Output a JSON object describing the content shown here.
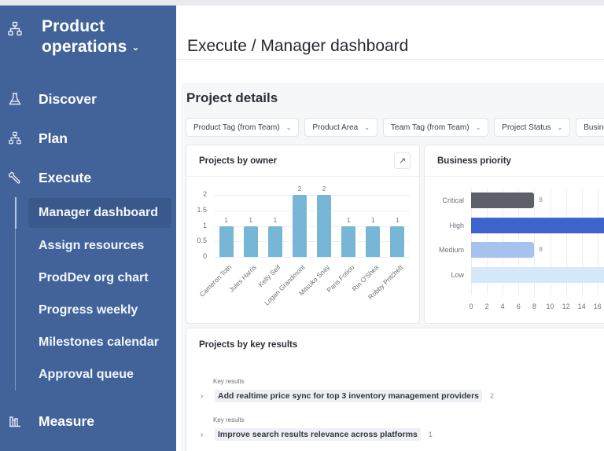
{
  "sidebar": {
    "workspace": {
      "title_line1": "Product",
      "title_line2": "operations",
      "caret": "⌄",
      "icon": "org-chart-icon"
    },
    "sections": [
      {
        "label": "Discover",
        "icon": "flask-icon"
      },
      {
        "label": "Plan",
        "icon": "org-chart-icon"
      },
      {
        "label": "Execute",
        "icon": "wrench-icon"
      },
      {
        "label": "Measure",
        "icon": "bar-chart-icon"
      }
    ],
    "execute_items": [
      {
        "label": "Manager dashboard",
        "active": true
      },
      {
        "label": "Assign resources",
        "active": false
      },
      {
        "label": "ProdDev org chart",
        "active": false
      },
      {
        "label": "Progress weekly",
        "active": false
      },
      {
        "label": "Milestones calendar",
        "active": false
      },
      {
        "label": "Approval queue",
        "active": false
      }
    ]
  },
  "header": {
    "title": "Execute / Manager dashboard"
  },
  "section": {
    "title": "Project details",
    "filters": [
      {
        "label": "Product Tag (from Team)"
      },
      {
        "label": "Product Area"
      },
      {
        "label": "Team Tag (from Team)"
      },
      {
        "label": "Project Status"
      },
      {
        "label": "Business P"
      }
    ],
    "filter_chevron": "⌄"
  },
  "owner_card": {
    "title": "Projects by owner",
    "expand_icon": "↗"
  },
  "priority_card": {
    "title": "Business priority"
  },
  "kr_card": {
    "title": "Projects by key results",
    "groups": [
      {
        "caption": "Key results",
        "label": "Add realtime price sync for top 3 inventory management providers",
        "count": "2",
        "chevron": "›"
      },
      {
        "caption": "Key results",
        "label": "Improve search results relevance across platforms",
        "count": "1",
        "chevron": "›"
      }
    ]
  },
  "colors": {
    "sidebar_bg": "#41639a",
    "sidebar_active": "#39598c",
    "owner_bar": "#78b6d6",
    "critical": "#5d6069",
    "high": "#3d63cc",
    "medium": "#a8c2ee",
    "low": "#d6e9fb"
  },
  "chart_data": [
    {
      "type": "bar",
      "title": "Projects by owner",
      "categories": [
        "Cameron Toth",
        "Jules Harris",
        "Kelly Seif",
        "Logan Grandmont",
        "Mitsuko Snay",
        "Paris Fotiou",
        "Rin O'Shea",
        "Robby Pritchett"
      ],
      "values": [
        1,
        1,
        1,
        2,
        2,
        1,
        1,
        1
      ],
      "data_labels": [
        "1",
        "1",
        "1",
        "2",
        "2",
        "1",
        "1",
        "1"
      ],
      "yticks": [
        "0",
        "0.5",
        "1",
        "1.5",
        "2"
      ],
      "ylim": [
        0,
        2
      ],
      "xlabel": "",
      "ylabel": "",
      "grid": true,
      "xlabel_rotation": -45
    },
    {
      "type": "bar",
      "orientation": "horizontal",
      "title": "Business priority",
      "categories": [
        "Critical",
        "High",
        "Medium",
        "Low"
      ],
      "values": [
        8,
        18,
        8,
        18
      ],
      "data_labels": [
        "8",
        "",
        "8",
        ""
      ],
      "xticks": [
        "0",
        "2",
        "4",
        "6",
        "8",
        "10",
        "12",
        "14",
        "16"
      ],
      "xlim": [
        0,
        18
      ],
      "grid": true,
      "note": "High and Low bars extend beyond visible right edge"
    }
  ]
}
